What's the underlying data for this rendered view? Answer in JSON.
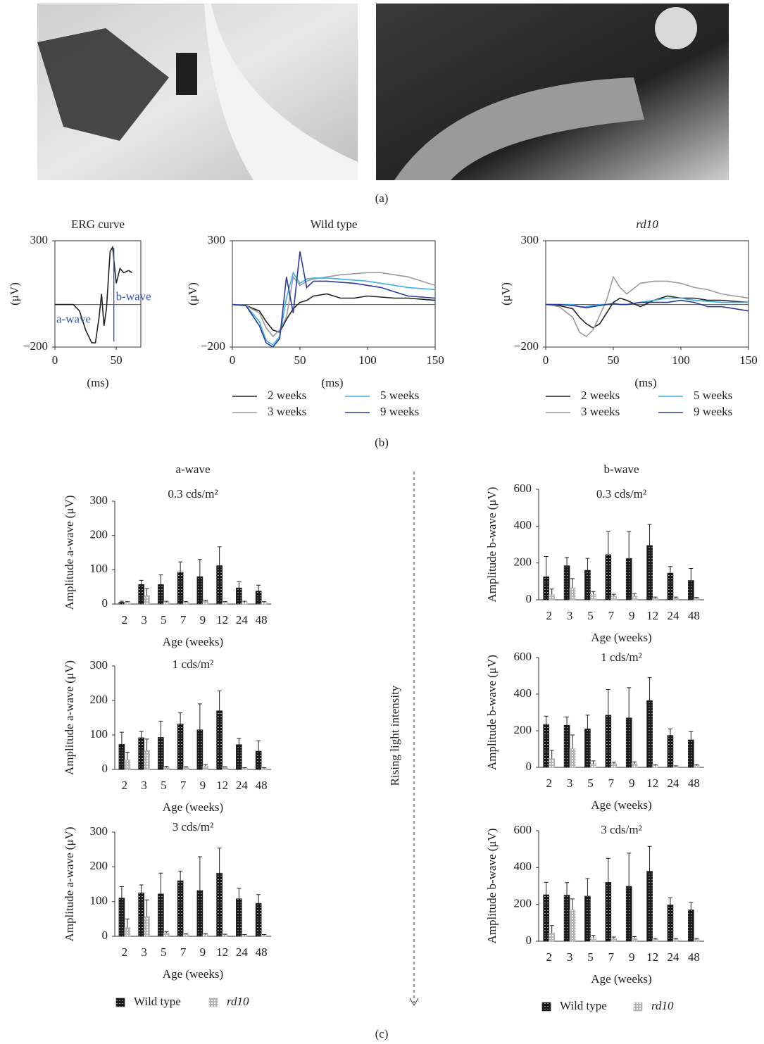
{
  "panel_labels": [
    "(a)",
    "(b)",
    "(c)"
  ],
  "annotation": "Rising light intensity",
  "chart_data": [
    {
      "type": "line",
      "title": "ERG curve",
      "x_label": "(ms)",
      "y_label": "(μV)",
      "annotations": [
        "a-wave",
        "b-wave"
      ],
      "x": [
        0,
        10,
        15,
        20,
        25,
        30,
        33,
        36,
        38,
        40,
        42,
        45,
        47,
        50,
        53,
        56,
        60,
        63
      ],
      "xlim": [
        0,
        70
      ],
      "xticks": [
        0,
        50
      ],
      "ylim": [
        -200,
        300
      ],
      "yticks": [
        {
          "value": -200,
          "label": "−200"
        },
        300
      ],
      "series": [
        {
          "color": "#222222",
          "values": [
            0,
            0,
            0,
            -30,
            -120,
            -180,
            -180,
            -60,
            50,
            -100,
            -20,
            250,
            270,
            100,
            170,
            150,
            160,
            150
          ]
        }
      ]
    },
    {
      "type": "line",
      "title": "Wild type",
      "x_label": "(ms)",
      "y_label": "(μV)",
      "x": [
        0,
        10,
        20,
        25,
        30,
        35,
        40,
        45,
        50,
        55,
        60,
        70,
        80,
        90,
        100,
        110,
        120,
        130,
        140,
        150
      ],
      "xlim": [
        0,
        150
      ],
      "xticks": [
        0,
        50,
        100,
        150
      ],
      "ylim": [
        -200,
        300
      ],
      "yticks": [
        {
          "value": -200,
          "label": "−200"
        },
        300
      ],
      "series": [
        {
          "name": "2 weeks",
          "color": "#222222",
          "values": [
            0,
            -5,
            -30,
            -80,
            -120,
            -130,
            -70,
            -20,
            10,
            20,
            40,
            50,
            30,
            30,
            40,
            35,
            30,
            30,
            25,
            20
          ]
        },
        {
          "name": "3 weeks",
          "color": "#9a9a9a",
          "values": [
            0,
            -5,
            -40,
            -110,
            -150,
            -120,
            -60,
            130,
            90,
            110,
            120,
            130,
            140,
            145,
            150,
            150,
            140,
            130,
            110,
            90
          ]
        },
        {
          "name": "5 weeks",
          "color": "#3ab0e0",
          "values": [
            0,
            -5,
            -80,
            -170,
            -190,
            -150,
            30,
            150,
            100,
            120,
            125,
            125,
            120,
            115,
            110,
            100,
            90,
            80,
            75,
            70
          ]
        },
        {
          "name": "9 weeks",
          "color": "#2b3a9c",
          "values": [
            0,
            -5,
            -100,
            -180,
            -200,
            -160,
            130,
            -40,
            250,
            80,
            110,
            110,
            105,
            100,
            90,
            80,
            60,
            40,
            35,
            30
          ]
        }
      ]
    },
    {
      "type": "line",
      "title": "rd10",
      "x_label": "(ms)",
      "y_label": "(μV)",
      "x": [
        0,
        10,
        20,
        25,
        30,
        35,
        40,
        45,
        50,
        55,
        60,
        70,
        80,
        90,
        100,
        110,
        120,
        130,
        140,
        150
      ],
      "xlim": [
        0,
        150
      ],
      "xticks": [
        0,
        50,
        100,
        150
      ],
      "ylim": [
        -200,
        300
      ],
      "yticks": [
        {
          "value": -200,
          "label": "−200"
        },
        300
      ],
      "series": [
        {
          "name": "2 weeks",
          "color": "#222222",
          "values": [
            0,
            -5,
            -20,
            -60,
            -90,
            -110,
            -90,
            -40,
            10,
            30,
            20,
            -10,
            20,
            40,
            30,
            30,
            20,
            20,
            15,
            10
          ]
        },
        {
          "name": "3 weeks",
          "color": "#9a9a9a",
          "values": [
            0,
            -10,
            -60,
            -130,
            -150,
            -120,
            -50,
            20,
            130,
            80,
            50,
            100,
            110,
            110,
            100,
            80,
            70,
            50,
            40,
            30
          ]
        },
        {
          "name": "5 weeks",
          "color": "#3ab0e0",
          "values": [
            0,
            0,
            0,
            -10,
            -10,
            -5,
            0,
            0,
            5,
            0,
            0,
            10,
            20,
            30,
            30,
            20,
            15,
            10,
            10,
            10
          ]
        },
        {
          "name": "9 weeks",
          "color": "#2b3a9c",
          "values": [
            0,
            0,
            -5,
            -10,
            -15,
            -10,
            -5,
            0,
            5,
            0,
            0,
            10,
            10,
            10,
            20,
            10,
            -10,
            -10,
            -20,
            -30
          ]
        }
      ]
    },
    {
      "type": "bar",
      "title": "a-wave",
      "subtitle": "0.3 cds/m²",
      "x_label": "Age (weeks)",
      "y_label": "Amplitude a-wave (μV)",
      "categories": [
        "2",
        "3",
        "5",
        "7",
        "9",
        "12",
        "24",
        "48"
      ],
      "ylim": [
        0,
        300
      ],
      "yticks": [
        0,
        100,
        200,
        300
      ],
      "series": [
        {
          "name": "Wild type",
          "color": "#1a1a1a",
          "values": [
            5,
            57,
            57,
            93,
            80,
            112,
            47,
            38
          ],
          "errors": [
            3,
            12,
            28,
            30,
            50,
            55,
            18,
            17
          ]
        },
        {
          "name": "rd10",
          "color": "#b5b5b5",
          "values": [
            5,
            25,
            5,
            5,
            8,
            5,
            5,
            5
          ],
          "errors": [
            2,
            20,
            3,
            2,
            3,
            2,
            3,
            2
          ]
        }
      ]
    },
    {
      "type": "bar",
      "subtitle": "1 cds/m²",
      "x_label": "Age (weeks)",
      "y_label": "Amplitude a-wave (μV)",
      "categories": [
        "2",
        "3",
        "5",
        "7",
        "9",
        "12",
        "24",
        "48"
      ],
      "ylim": [
        0,
        300
      ],
      "yticks": [
        0,
        100,
        200,
        300
      ],
      "series": [
        {
          "name": "Wild type",
          "color": "#1a1a1a",
          "values": [
            73,
            92,
            93,
            132,
            115,
            170,
            72,
            53
          ],
          "errors": [
            35,
            18,
            47,
            32,
            75,
            58,
            18,
            30
          ]
        },
        {
          "name": "rd10",
          "color": "#b5b5b5",
          "values": [
            28,
            55,
            6,
            6,
            10,
            6,
            3,
            3
          ],
          "errors": [
            22,
            33,
            3,
            2,
            4,
            2,
            2,
            2
          ]
        }
      ]
    },
    {
      "type": "bar",
      "subtitle": "3 cds/m²",
      "x_label": "Age (weeks)",
      "y_label": "Amplitude a-wave (μV)",
      "categories": [
        "2",
        "3",
        "5",
        "7",
        "9",
        "12",
        "24",
        "48"
      ],
      "ylim": [
        0,
        300
      ],
      "yticks": [
        0,
        100,
        200,
        300
      ],
      "series": [
        {
          "name": "Wild type",
          "color": "#1a1a1a",
          "values": [
            110,
            125,
            122,
            160,
            132,
            182,
            108,
            95
          ],
          "errors": [
            33,
            23,
            60,
            28,
            97,
            72,
            30,
            25
          ]
        },
        {
          "name": "rd10",
          "color": "#b5b5b5",
          "values": [
            25,
            57,
            10,
            5,
            5,
            4,
            3,
            3
          ],
          "errors": [
            25,
            48,
            3,
            2,
            3,
            2,
            2,
            2
          ]
        }
      ]
    },
    {
      "type": "bar",
      "title": "b-wave",
      "subtitle": "0.3 cds/m²",
      "x_label": "Age (weeks)",
      "y_label": "Amplitude b-wave (μV)",
      "categories": [
        "2",
        "3",
        "5",
        "7",
        "9",
        "12",
        "24",
        "48"
      ],
      "ylim": [
        0,
        600
      ],
      "yticks": [
        0,
        200,
        400,
        600
      ],
      "series": [
        {
          "name": "Wild type",
          "color": "#1a1a1a",
          "values": [
            125,
            185,
            160,
            245,
            225,
            295,
            145,
            105
          ],
          "errors": [
            110,
            45,
            65,
            125,
            145,
            115,
            35,
            65
          ]
        },
        {
          "name": "rd10",
          "color": "#b5b5b5",
          "values": [
            28,
            65,
            30,
            20,
            20,
            10,
            10,
            8
          ],
          "errors": [
            30,
            50,
            15,
            10,
            12,
            5,
            5,
            5
          ]
        }
      ]
    },
    {
      "type": "bar",
      "subtitle": "1 cds/m²",
      "x_label": "Age (weeks)",
      "y_label": "Amplitude b-wave (μV)",
      "categories": [
        "2",
        "3",
        "5",
        "7",
        "9",
        "12",
        "24",
        "48"
      ],
      "ylim": [
        0,
        600
      ],
      "yticks": [
        0,
        200,
        400,
        600
      ],
      "series": [
        {
          "name": "Wild type",
          "color": "#1a1a1a",
          "values": [
            235,
            230,
            210,
            285,
            270,
            365,
            175,
            150
          ],
          "errors": [
            45,
            45,
            75,
            140,
            165,
            125,
            35,
            45
          ]
        },
        {
          "name": "rd10",
          "color": "#b5b5b5",
          "values": [
            48,
            102,
            20,
            20,
            20,
            10,
            5,
            10
          ],
          "errors": [
            45,
            75,
            15,
            8,
            10,
            5,
            3,
            5
          ]
        }
      ]
    },
    {
      "type": "bar",
      "subtitle": "3 cds/m²",
      "x_label": "Age (weeks)",
      "y_label": "Amplitude b-wave (μV)",
      "categories": [
        "2",
        "3",
        "5",
        "7",
        "9",
        "12",
        "24",
        "48"
      ],
      "ylim": [
        0,
        600
      ],
      "yticks": [
        0,
        200,
        400,
        600
      ],
      "series": [
        {
          "name": "Wild type",
          "color": "#1a1a1a",
          "values": [
            252,
            250,
            245,
            320,
            298,
            380,
            198,
            170
          ],
          "errors": [
            68,
            68,
            95,
            130,
            180,
            135,
            38,
            40
          ]
        },
        {
          "name": "rd10",
          "color": "#b5b5b5",
          "values": [
            45,
            170,
            20,
            15,
            15,
            10,
            10,
            10
          ],
          "errors": [
            40,
            60,
            12,
            8,
            10,
            5,
            5,
            5
          ]
        }
      ]
    }
  ]
}
